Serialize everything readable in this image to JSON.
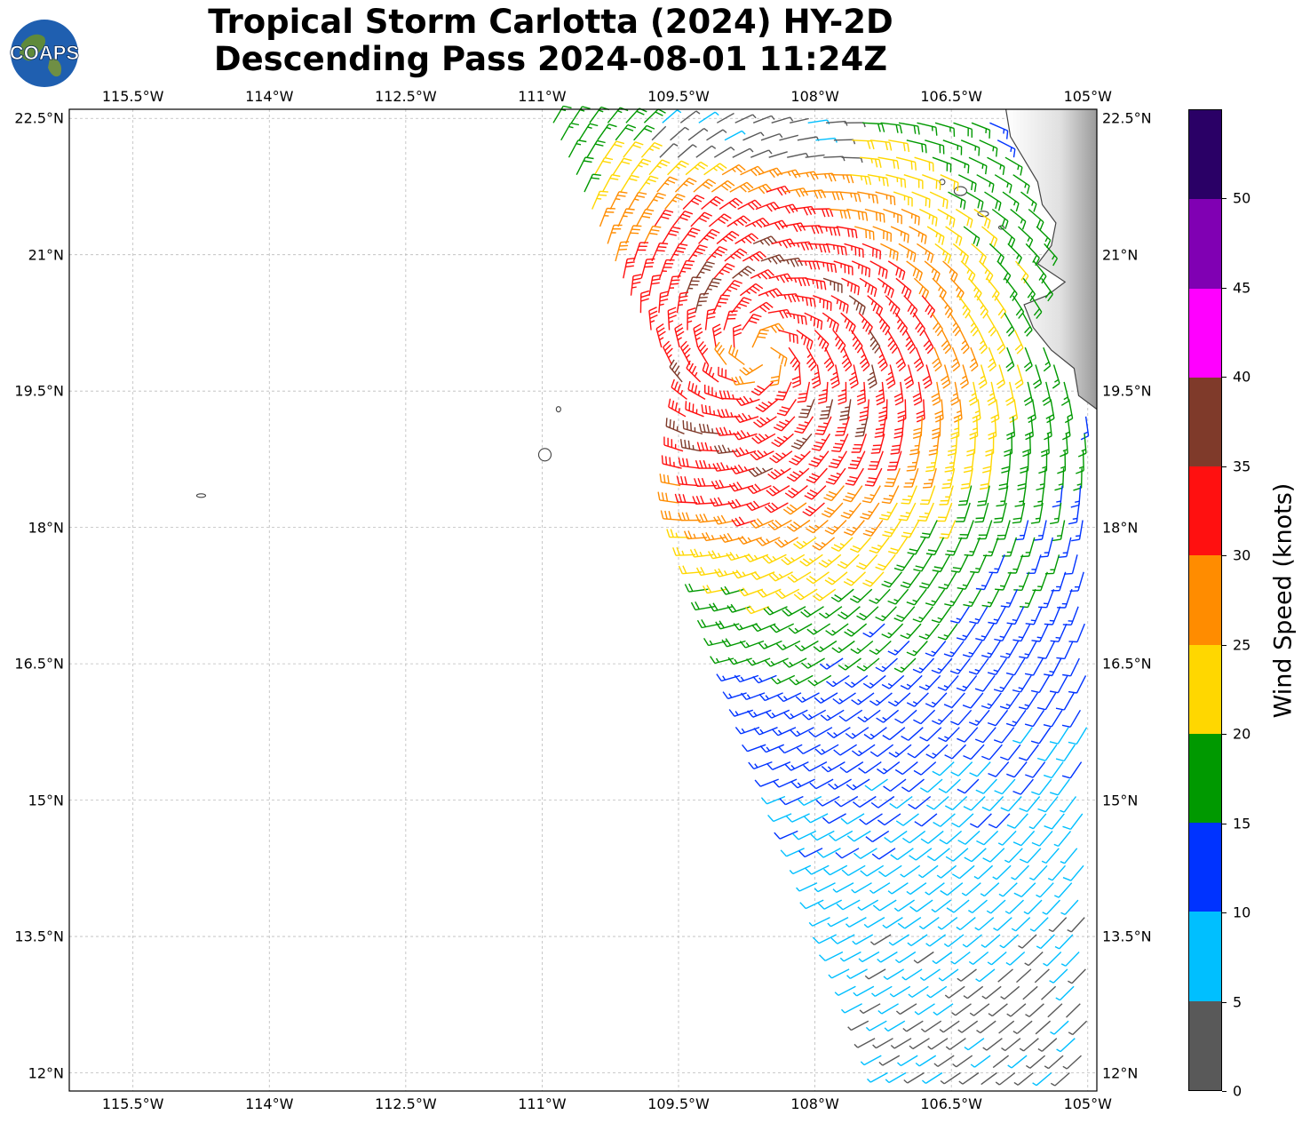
{
  "title": {
    "line1": "Tropical Storm Carlotta (2024) HY-2D",
    "line2": "Descending Pass 2024-08-01 11:24Z"
  },
  "logo": {
    "text": "COAPS"
  },
  "map": {
    "lon_range": [
      -116.2,
      -104.9
    ],
    "lat_range": [
      11.8,
      22.6
    ],
    "gridlines": true,
    "lon_ticks": [
      "115.5°W",
      "114°W",
      "112.5°W",
      "111°W",
      "109.5°W",
      "108°W",
      "106.5°W",
      "105°W"
    ],
    "lon_tick_values": [
      -115.5,
      -114,
      -112.5,
      -111,
      -109.5,
      -108,
      -106.5,
      -105
    ],
    "lat_ticks": [
      "22.5°N",
      "21°N",
      "19.5°N",
      "18°N",
      "16.5°N",
      "15°N",
      "13.5°N",
      "12°N"
    ],
    "lat_tick_values": [
      22.5,
      21,
      19.5,
      18,
      16.5,
      15,
      13.5,
      12
    ],
    "storm_center": {
      "lon": -108.6,
      "lat": 19.9
    },
    "swath_edge_west": [
      [
        -110.9,
        22.5
      ],
      [
        -110.0,
        20.5
      ],
      [
        -109.4,
        19.5
      ],
      [
        -109.5,
        18.2
      ],
      [
        -108.5,
        15.5
      ],
      [
        -107.2,
        12.0
      ]
    ],
    "land": "Mexico coastline and Revillagigedo Islands (grey shaded terrain at upper right)"
  },
  "colorbar": {
    "label": "Wind Speed (knots)",
    "ticks": [
      "0",
      "5",
      "10",
      "15",
      "20",
      "25",
      "30",
      "35",
      "40",
      "45",
      "50"
    ],
    "bins": [
      {
        "min": 0,
        "max": 5,
        "color": "#595959"
      },
      {
        "min": 5,
        "max": 10,
        "color": "#00bfff"
      },
      {
        "min": 10,
        "max": 15,
        "color": "#0033ff"
      },
      {
        "min": 15,
        "max": 20,
        "color": "#009900"
      },
      {
        "min": 20,
        "max": 25,
        "color": "#ffd700"
      },
      {
        "min": 25,
        "max": 30,
        "color": "#ff8c00"
      },
      {
        "min": 30,
        "max": 35,
        "color": "#ff1010"
      },
      {
        "min": 35,
        "max": 40,
        "color": "#7f3a2a"
      },
      {
        "min": 40,
        "max": 45,
        "color": "#ff00ff"
      },
      {
        "min": 45,
        "max": 50,
        "color": "#8000b3"
      },
      {
        "min": 50,
        "max": 55,
        "color": "#2a0066"
      }
    ]
  }
}
